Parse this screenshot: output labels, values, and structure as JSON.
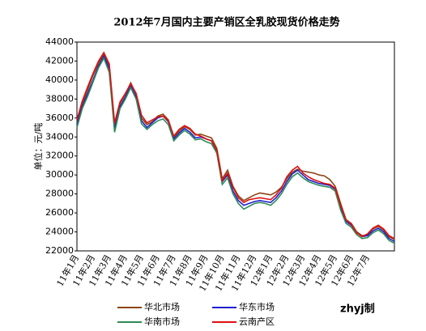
{
  "chart_data": {
    "type": "line",
    "title": "2012年7月国内主要产销区全乳胶现货价格走势",
    "y_label": "单位：元/吨",
    "annotation": "zhyj制",
    "categories": [
      "11年1月",
      null,
      null,
      "11年2月",
      null,
      null,
      "11年3月",
      null,
      null,
      "11年4月",
      null,
      null,
      "11年5月",
      null,
      null,
      "11年6月",
      null,
      null,
      "11年7月",
      null,
      null,
      "11年8月",
      null,
      null,
      "11年9月",
      null,
      null,
      "11年10月",
      null,
      null,
      "11年11月",
      null,
      null,
      "11年12月",
      null,
      null,
      "12年1月",
      null,
      null,
      "12年2月",
      null,
      null,
      "12年3月",
      null,
      null,
      "12年4月",
      null,
      null,
      "12年5月",
      null,
      null,
      "12年6月",
      null,
      null,
      "12年7月",
      null,
      null,
      null,
      null,
      null
    ],
    "series": [
      {
        "name": "华北市场",
        "color": "#8b4513",
        "values": [
          35500,
          37500,
          39000,
          40500,
          41800,
          42700,
          41500,
          35000,
          37500,
          38500,
          39700,
          38500,
          36000,
          35300,
          35600,
          36200,
          36400,
          35800,
          34000,
          34600,
          35100,
          34800,
          34200,
          34300,
          34100,
          33900,
          32800,
          29600,
          30500,
          28800,
          27800,
          27300,
          27600,
          27900,
          28100,
          28000,
          27900,
          28200,
          28700,
          29600,
          30300,
          30600,
          30400,
          30300,
          30200,
          30000,
          29900,
          29500,
          28800,
          27000,
          25300,
          24900,
          24000,
          23600,
          23700,
          24300,
          24600,
          24200,
          23500,
          23200
        ]
      },
      {
        "name": "华东市场",
        "color": "#1f1fd0",
        "values": [
          35300,
          37200,
          38600,
          40000,
          41500,
          42500,
          41200,
          34800,
          37200,
          38200,
          39400,
          38200,
          35700,
          35000,
          35500,
          36000,
          36200,
          35600,
          33800,
          34400,
          34900,
          34500,
          33900,
          34000,
          33800,
          33600,
          32500,
          29300,
          30000,
          28300,
          27300,
          26800,
          27000,
          27200,
          27300,
          27200,
          27100,
          27600,
          28300,
          29300,
          30100,
          30500,
          30000,
          29500,
          29300,
          29100,
          29000,
          28900,
          28500,
          26500,
          25100,
          24700,
          23900,
          23500,
          23600,
          24100,
          24400,
          24000,
          23300,
          23000
        ]
      },
      {
        "name": "华南市场",
        "color": "#2e8b57",
        "values": [
          35000,
          37000,
          38300,
          39800,
          41300,
          42300,
          40800,
          34500,
          37000,
          38000,
          39200,
          38000,
          35400,
          34800,
          35300,
          35700,
          35900,
          35300,
          33600,
          34200,
          34700,
          34300,
          33700,
          33800,
          33500,
          33300,
          32300,
          29000,
          29700,
          28000,
          27000,
          26400,
          26700,
          27000,
          27100,
          27000,
          26800,
          27300,
          28000,
          29000,
          29800,
          30200,
          29700,
          29300,
          29100,
          28900,
          28800,
          28700,
          28300,
          26300,
          24900,
          24500,
          23700,
          23300,
          23400,
          23900,
          24200,
          23800,
          23100,
          22800
        ]
      },
      {
        "name": "云南产区",
        "color": "#e01010",
        "values": [
          35800,
          37800,
          39300,
          40700,
          42000,
          42900,
          41700,
          35500,
          37700,
          38600,
          39600,
          38600,
          36300,
          35500,
          35800,
          36100,
          36200,
          35700,
          34100,
          34800,
          35200,
          34900,
          34300,
          34100,
          33800,
          33600,
          32600,
          29400,
          30200,
          28700,
          27600,
          27100,
          27400,
          27500,
          27600,
          27500,
          27400,
          27900,
          28600,
          29800,
          30500,
          30900,
          30200,
          29800,
          29500,
          29300,
          29100,
          29000,
          28600,
          26800,
          25300,
          24800,
          23900,
          23500,
          23800,
          24400,
          24700,
          24300,
          23600,
          23300
        ]
      }
    ],
    "ylim": [
      22000,
      44000
    ],
    "yticks": [
      22000,
      24000,
      26000,
      28000,
      30000,
      32000,
      34000,
      36000,
      38000,
      40000,
      42000,
      44000
    ],
    "grid": false
  }
}
